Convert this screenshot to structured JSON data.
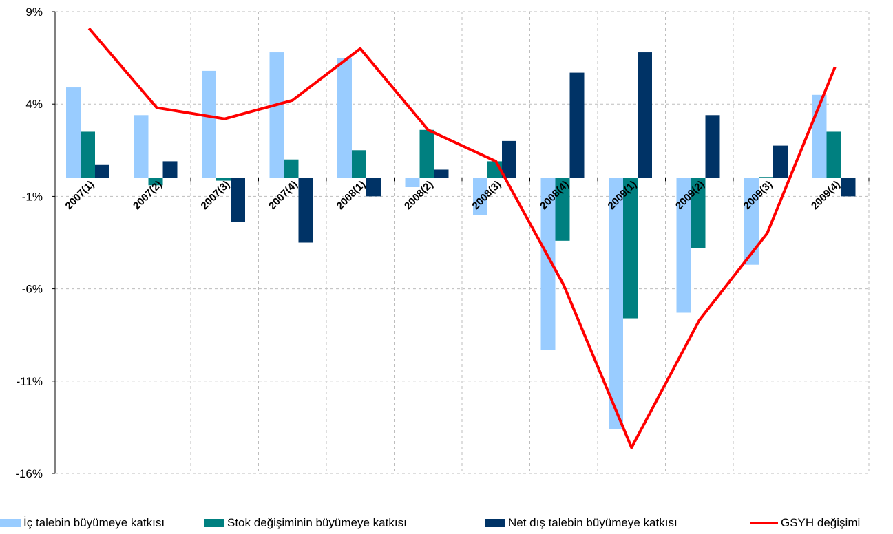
{
  "chart_data": {
    "type": "bar",
    "categories": [
      "2007(1)",
      "2007(2)",
      "2007(3)",
      "2007(4)",
      "2008(1)",
      "2008(2)",
      "2008(3)",
      "2008(4)",
      "2009(1)",
      "2009(2)",
      "2009(3)",
      "2009(4)"
    ],
    "y_ticks": [
      "9%",
      "4%",
      "-1%",
      "-6%",
      "-11%",
      "-16%"
    ],
    "y_tick_values": [
      9,
      4,
      -1,
      -6,
      -11,
      -16
    ],
    "ylim": [
      -16,
      9
    ],
    "grid": true,
    "legend_position": "bottom",
    "series": [
      {
        "name": "İç talebin büyümeye katkısı",
        "type": "bar",
        "color": "#99CCFF",
        "values": [
          4.9,
          3.4,
          5.8,
          6.8,
          6.5,
          -0.5,
          -2.0,
          -9.3,
          -13.6,
          -7.3,
          -4.7,
          4.5
        ]
      },
      {
        "name": "Stok değişiminin büyümeye katkısı",
        "type": "bar",
        "color": "#008080",
        "values": [
          2.5,
          -0.4,
          -0.15,
          1.0,
          1.5,
          2.6,
          0.9,
          -3.4,
          -7.6,
          -3.8,
          0.05,
          2.5
        ]
      },
      {
        "name": "Net dış talebin büyümeye katkısı",
        "type": "bar",
        "color": "#003366",
        "values": [
          0.7,
          0.9,
          -2.4,
          -3.5,
          -1.0,
          0.45,
          2.0,
          5.7,
          6.8,
          3.4,
          1.75,
          -1.0
        ]
      },
      {
        "name": "GSYH değişimi",
        "type": "line",
        "color": "#FF0000",
        "values": [
          8.1,
          3.8,
          3.2,
          4.2,
          7.0,
          2.6,
          0.9,
          -5.8,
          -14.6,
          -7.7,
          -3.0,
          6.0
        ]
      }
    ]
  }
}
